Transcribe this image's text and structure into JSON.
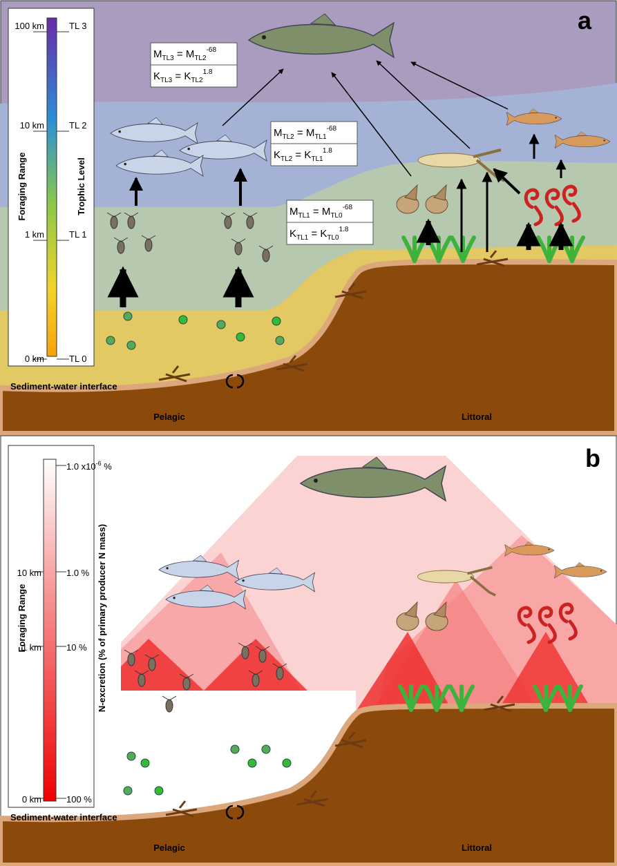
{
  "panel_a": {
    "letter": "a",
    "scale": {
      "range_labels": [
        "100 km",
        "10 km",
        "1 km",
        "0 km"
      ],
      "tl_labels": [
        "TL 3",
        "TL 2",
        "TL 1",
        "TL 0"
      ],
      "range_title": "Foraging Range",
      "tl_title": "Trophic Level"
    },
    "equations": [
      [
        {
          "var": "M",
          "sub": "TL3",
          "eq": " = M",
          "sub2": "TL2",
          "sup": "-68"
        },
        {
          "var": "K",
          "sub": "TL3",
          "eq": " = K",
          "sub2": "TL2",
          "sup": "1.8"
        }
      ],
      [
        {
          "var": "M",
          "sub": "TL2",
          "eq": " = M",
          "sub2": "TL1",
          "sup": "-68"
        },
        {
          "var": "K",
          "sub": "TL2",
          "eq": " = K",
          "sub2": "TL1",
          "sup": "1.8"
        }
      ],
      [
        {
          "var": "M",
          "sub": "TL1",
          "eq": " = M",
          "sub2": "TL0",
          "sup": "-68"
        },
        {
          "var": "K",
          "sub": "TL1",
          "eq": " = K",
          "sub2": "TL0",
          "sup": "1.8"
        }
      ]
    ],
    "interface_label": "Sediment-water interface",
    "pelagic_label": "Pelagic",
    "littoral_label": "Littoral"
  },
  "panel_b": {
    "letter": "b",
    "scale": {
      "range_labels": [
        "10 km",
        "1 km",
        "0 km"
      ],
      "percent_labels": [
        {
          "base": "1.0 x10",
          "sup": "-6",
          "unit": " %"
        },
        "1.0 %",
        "10 %",
        "100 %"
      ],
      "range_title": "Foraging Range",
      "percent_title": "N-excretion (% of primary producer N mass)"
    },
    "interface_label": "Sediment-water interface",
    "pelagic_label": "Pelagic",
    "littoral_label": "Littoral"
  }
}
